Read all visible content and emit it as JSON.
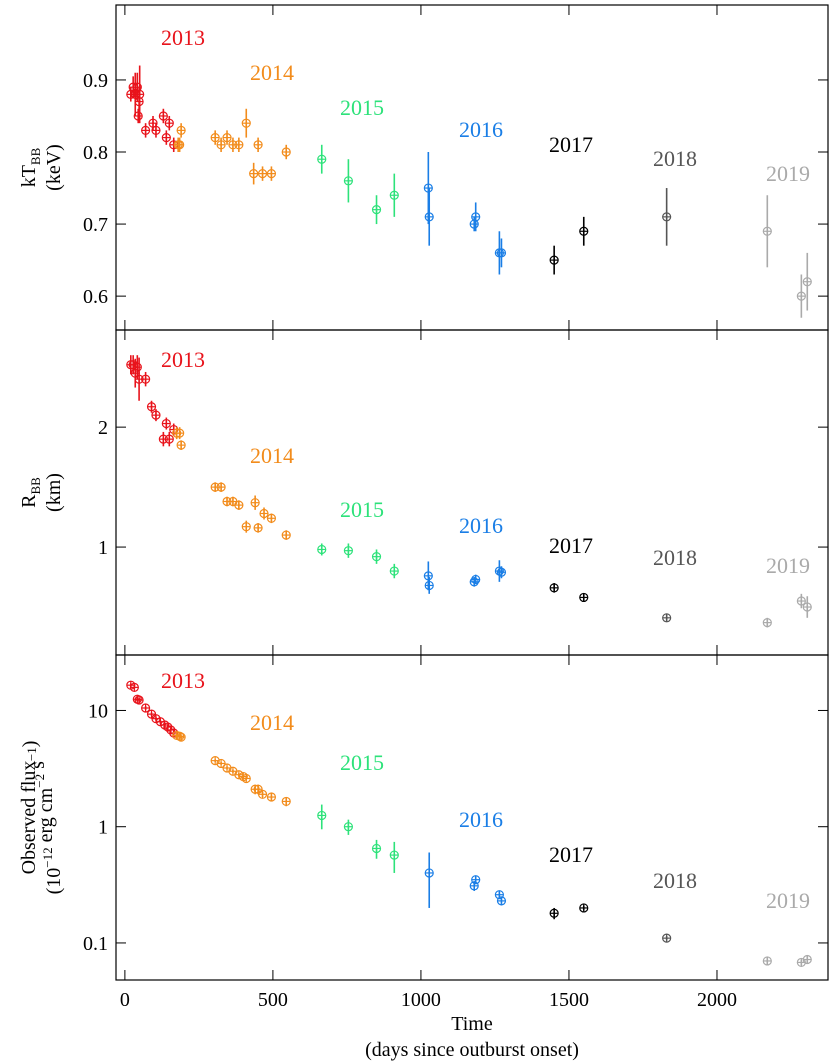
{
  "chart_data": [
    {
      "type": "scatter",
      "log": false,
      "ylabel": [
        [
          {
            "text": "kT"
          },
          {
            "sub": "BB"
          }
        ],
        [
          {
            "text": "(keV)"
          }
        ]
      ],
      "xlim": [
        -30,
        2375
      ],
      "xticks": [
        0,
        500,
        1000,
        1500,
        2000
      ],
      "ylim": [
        0.553,
        1.004
      ],
      "yticks": [
        0.6,
        0.7,
        0.8,
        0.9
      ],
      "series": [
        {
          "name": "2013",
          "color": "#e8131b",
          "x": [
            20,
            28,
            35,
            42,
            45,
            48,
            50,
            70,
            95,
            105,
            130,
            140,
            150,
            165
          ],
          "values": [
            0.88,
            0.89,
            0.88,
            0.89,
            0.85,
            0.87,
            0.88,
            0.83,
            0.84,
            0.83,
            0.85,
            0.82,
            0.84,
            0.81
          ],
          "errors": [
            0.01,
            0.015,
            0.03,
            0.02,
            0.01,
            0.02,
            0.04,
            0.01,
            0.01,
            0.01,
            0.01,
            0.01,
            0.01,
            0.01
          ]
        },
        {
          "name": "2014",
          "color": "#f28c1c",
          "x": [
            180,
            185,
            190,
            305,
            325,
            345,
            365,
            385,
            410,
            435,
            450,
            465,
            495,
            545
          ],
          "values": [
            0.81,
            0.81,
            0.83,
            0.82,
            0.81,
            0.82,
            0.81,
            0.81,
            0.84,
            0.77,
            0.81,
            0.77,
            0.77,
            0.8
          ],
          "errors": [
            0.01,
            0.01,
            0.01,
            0.01,
            0.01,
            0.01,
            0.01,
            0.01,
            0.02,
            0.015,
            0.01,
            0.01,
            0.01,
            0.01
          ]
        },
        {
          "name": "2015",
          "color": "#2de27a",
          "x": [
            665,
            755,
            850,
            910
          ],
          "values": [
            0.79,
            0.76,
            0.72,
            0.74
          ],
          "errors": [
            0.02,
            0.03,
            0.02,
            0.03
          ]
        },
        {
          "name": "2016",
          "color": "#1a7ee6",
          "x": [
            1025,
            1028,
            1180,
            1185,
            1265,
            1272
          ],
          "values": [
            0.75,
            0.71,
            0.7,
            0.71,
            0.66,
            0.66
          ],
          "errors": [
            0.05,
            0.04,
            0.01,
            0.02,
            0.03,
            0.02
          ]
        },
        {
          "name": "2017",
          "color": "#000000",
          "x": [
            1450,
            1550
          ],
          "values": [
            0.65,
            0.69
          ],
          "errors": [
            0.02,
            0.02
          ]
        },
        {
          "name": "2018",
          "color": "#555555",
          "x": [
            1830
          ],
          "values": [
            0.71
          ],
          "errors": [
            0.04
          ]
        },
        {
          "name": "2019",
          "color": "#aaaaaa",
          "x": [
            2170,
            2285,
            2305
          ],
          "values": [
            0.69,
            0.6,
            0.62
          ],
          "errors": [
            0.05,
            0.03,
            0.04
          ]
        }
      ]
    },
    {
      "type": "scatter",
      "log": false,
      "ylabel": [
        [
          {
            "text": "R"
          },
          {
            "sub": "BB"
          }
        ],
        [
          {
            "text": "(km)"
          }
        ]
      ],
      "xlim": [
        -30,
        2375
      ],
      "xticks": [
        0,
        500,
        1000,
        1500,
        2000
      ],
      "ylim": [
        0.1,
        2.81
      ],
      "yticks": [
        1,
        2
      ],
      "series": [
        {
          "name": "2013",
          "color": "#e8131b",
          "x": [
            20,
            28,
            35,
            42,
            48,
            70,
            90,
            105,
            130,
            140,
            150,
            165
          ],
          "values": [
            2.52,
            2.52,
            2.45,
            2.5,
            2.4,
            2.4,
            2.17,
            2.1,
            1.9,
            2.03,
            1.9,
            1.98
          ],
          "errors": [
            0.08,
            0.08,
            0.12,
            0.1,
            0.18,
            0.06,
            0.05,
            0.05,
            0.06,
            0.05,
            0.06,
            0.05
          ]
        },
        {
          "name": "2014",
          "color": "#f28c1c",
          "x": [
            175,
            185,
            190,
            305,
            325,
            345,
            365,
            385,
            410,
            440,
            450,
            470,
            495,
            545
          ],
          "values": [
            1.95,
            1.95,
            1.85,
            1.5,
            1.5,
            1.38,
            1.38,
            1.35,
            1.17,
            1.37,
            1.16,
            1.28,
            1.24,
            1.1
          ],
          "errors": [
            0.05,
            0.05,
            0.04,
            0.04,
            0.04,
            0.04,
            0.04,
            0.04,
            0.05,
            0.06,
            0.04,
            0.05,
            0.04,
            0.04
          ]
        },
        {
          "name": "2015",
          "color": "#2de27a",
          "x": [
            665,
            755,
            850,
            910
          ],
          "values": [
            0.98,
            0.97,
            0.92,
            0.8
          ],
          "errors": [
            0.05,
            0.06,
            0.06,
            0.06
          ]
        },
        {
          "name": "2016",
          "color": "#1a7ee6",
          "x": [
            1025,
            1028,
            1180,
            1185,
            1265,
            1272
          ],
          "values": [
            0.76,
            0.68,
            0.71,
            0.73,
            0.8,
            0.79
          ],
          "errors": [
            0.12,
            0.07,
            0.04,
            0.04,
            0.09,
            0.05
          ]
        },
        {
          "name": "2017",
          "color": "#000000",
          "x": [
            1450,
            1550
          ],
          "values": [
            0.66,
            0.58
          ],
          "errors": [
            0.04,
            0.03
          ]
        },
        {
          "name": "2018",
          "color": "#555555",
          "x": [
            1830
          ],
          "values": [
            0.41
          ],
          "errors": [
            0.03
          ]
        },
        {
          "name": "2019",
          "color": "#aaaaaa",
          "x": [
            2170,
            2285,
            2305
          ],
          "values": [
            0.37,
            0.55,
            0.5
          ],
          "errors": [
            0.04,
            0.06,
            0.09
          ]
        }
      ]
    },
    {
      "type": "scatter",
      "log": true,
      "ylabel": [
        [
          {
            "text": "Observed flux"
          }
        ],
        [
          {
            "text": "(10"
          },
          {
            "sup": "−12"
          },
          {
            "text": " erg cm"
          },
          {
            "sup": "−2"
          },
          {
            "text": " s"
          },
          {
            "sup": "−1"
          },
          {
            "text": ")"
          }
        ]
      ],
      "xlabel": [
        "Time",
        "(days since outburst onset)"
      ],
      "xlim": [
        -30,
        2375
      ],
      "xticks": [
        0,
        500,
        1000,
        1500,
        2000
      ],
      "ylim": [
        0.048,
        30
      ],
      "yticks": [
        0.1,
        1,
        10
      ],
      "series": [
        {
          "name": "2013",
          "color": "#e8131b",
          "x": [
            20,
            32,
            42,
            48,
            70,
            90,
            105,
            120,
            135,
            145,
            155,
            165
          ],
          "values": [
            16.5,
            15.8,
            12.5,
            12.3,
            10.5,
            9.3,
            8.5,
            8.0,
            7.5,
            7.2,
            6.8,
            6.4
          ],
          "errors": [
            0.6,
            0.6,
            0.5,
            0.5,
            0.4,
            0.3,
            0.3,
            0.3,
            0.3,
            0.3,
            0.3,
            0.3
          ]
        },
        {
          "name": "2014",
          "color": "#f28c1c",
          "x": [
            175,
            185,
            190,
            305,
            325,
            345,
            365,
            385,
            400,
            410,
            440,
            450,
            465,
            495,
            545
          ],
          "values": [
            6.1,
            6.0,
            5.9,
            3.7,
            3.5,
            3.2,
            3.0,
            2.8,
            2.7,
            2.6,
            2.1,
            2.1,
            1.9,
            1.8,
            1.65
          ],
          "errors": [
            0.2,
            0.2,
            0.2,
            0.1,
            0.1,
            0.1,
            0.1,
            0.1,
            0.1,
            0.1,
            0.2,
            0.2,
            0.1,
            0.15,
            0.15
          ]
        },
        {
          "name": "2015",
          "color": "#2de27a",
          "x": [
            665,
            755,
            850,
            910
          ],
          "values": [
            1.25,
            1.0,
            0.65,
            0.57
          ],
          "errors": [
            0.3,
            0.15,
            0.12,
            0.17
          ]
        },
        {
          "name": "2016",
          "color": "#1a7ee6",
          "x": [
            1028,
            1180,
            1185,
            1265,
            1272
          ],
          "values": [
            0.4,
            0.31,
            0.35,
            0.26,
            0.23
          ],
          "errors": [
            0.2,
            0.03,
            0.03,
            0.02,
            0.02
          ]
        },
        {
          "name": "2017",
          "color": "#000000",
          "x": [
            1450,
            1550
          ],
          "values": [
            0.18,
            0.2
          ],
          "errors": [
            0.02,
            0.01
          ]
        },
        {
          "name": "2018",
          "color": "#555555",
          "x": [
            1830
          ],
          "values": [
            0.11
          ],
          "errors": [
            0.005
          ]
        },
        {
          "name": "2019",
          "color": "#aaaaaa",
          "x": [
            2170,
            2285,
            2305
          ],
          "values": [
            0.07,
            0.068,
            0.072
          ],
          "errors": [
            0.005,
            0.004,
            0.006
          ]
        }
      ]
    }
  ]
}
